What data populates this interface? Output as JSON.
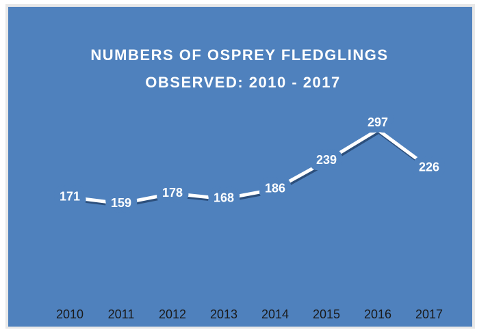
{
  "chart_data": {
    "type": "line",
    "title": [
      "NUMBERS OF OSPREY FLEDGLINGS",
      "OBSERVED:  2010  - 2017"
    ],
    "categories": [
      "2010",
      "2011",
      "2012",
      "2013",
      "2014",
      "2015",
      "2016",
      "2017"
    ],
    "series": [
      {
        "name": "Fledglings",
        "color": "#ffffff",
        "values": [
          171,
          159,
          178,
          168,
          186,
          239,
          297,
          226
        ]
      }
    ],
    "background": "#4f81bd"
  }
}
